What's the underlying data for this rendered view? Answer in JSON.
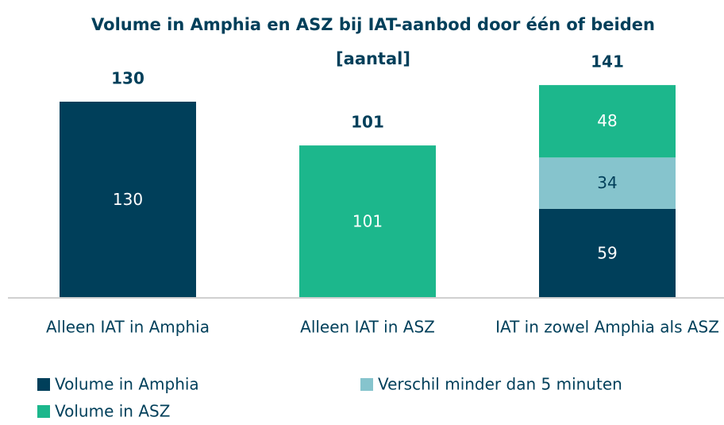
{
  "chart_data": {
    "type": "stacked_bar",
    "title": "Volume in Amphia en ASZ bij IAT-aanbod door één of beiden [aantal]",
    "categories": [
      "Alleen IAT in Amphia",
      "Alleen IAT in ASZ",
      "IAT in zowel Amphia als ASZ"
    ],
    "series": [
      {
        "name": "Volume in Amphia",
        "color": "#003f5a",
        "values": [
          130,
          null,
          59
        ]
      },
      {
        "name": "Verschil minder dan 5 minuten",
        "color": "#86c4cd",
        "values": [
          null,
          null,
          34
        ]
      },
      {
        "name": "Volume in ASZ",
        "color": "#1cb78c",
        "values": [
          null,
          101,
          48
        ]
      }
    ],
    "total_labels": [
      130,
      101,
      141
    ],
    "ylim": [
      0,
      145
    ],
    "legend": "bottom"
  }
}
